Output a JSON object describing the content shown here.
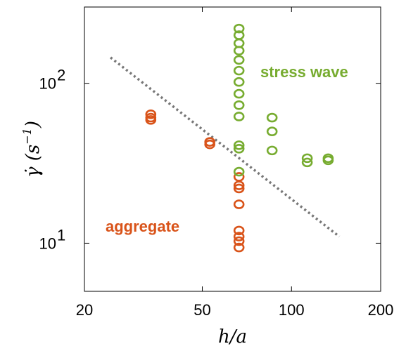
{
  "chart_data": {
    "type": "scatter",
    "xscale": "log",
    "yscale": "log",
    "xlim": [
      20,
      200
    ],
    "ylim": [
      5,
      300
    ],
    "xticks": [
      20,
      50,
      100,
      200
    ],
    "xtick_labels": [
      "20",
      "50",
      "100",
      "200"
    ],
    "yticks": [
      10,
      100
    ],
    "ytick_labels": [
      {
        "base": "10",
        "exp": "1"
      },
      {
        "base": "10",
        "exp": "2"
      }
    ],
    "xlabel": "h/a",
    "ylabel": {
      "main": "γ̇ (s",
      "exp": "−1",
      "close": ")"
    },
    "grid": false,
    "colors": {
      "aggregate": "#d95319",
      "stress_wave": "#77ac30",
      "fit_line": "#777777"
    },
    "annotations": [
      {
        "text": "stress wave",
        "series": "stress_wave"
      },
      {
        "text": "aggregate",
        "series": "aggregate"
      }
    ],
    "series": [
      {
        "key": "aggregate",
        "points": [
          [
            33.5,
            64
          ],
          [
            33.5,
            61
          ],
          [
            33.5,
            59
          ],
          [
            53,
            43
          ],
          [
            53,
            41.5
          ],
          [
            66.5,
            26
          ],
          [
            66.5,
            23
          ],
          [
            66.5,
            22
          ],
          [
            66.5,
            17.5
          ],
          [
            66.5,
            12
          ],
          [
            66.5,
            11
          ],
          [
            66.5,
            10.3
          ],
          [
            66.5,
            9.4
          ]
        ]
      },
      {
        "key": "stress_wave",
        "points": [
          [
            66.5,
            220
          ],
          [
            66.5,
            200
          ],
          [
            66.5,
            178
          ],
          [
            66.5,
            160
          ],
          [
            66.5,
            140
          ],
          [
            66.5,
            120
          ],
          [
            66.5,
            102
          ],
          [
            66.5,
            86
          ],
          [
            66.5,
            73
          ],
          [
            66.5,
            62
          ],
          [
            66.5,
            41
          ],
          [
            66.5,
            39
          ],
          [
            66.5,
            28
          ],
          [
            86,
            61
          ],
          [
            86,
            50
          ],
          [
            86,
            38
          ],
          [
            113,
            34
          ],
          [
            113,
            32
          ],
          [
            133,
            34
          ],
          [
            133,
            33
          ]
        ]
      }
    ],
    "fit_line": {
      "points": [
        [
          24.5,
          145
        ],
        [
          145,
          11
        ]
      ],
      "style": "dotted"
    }
  }
}
